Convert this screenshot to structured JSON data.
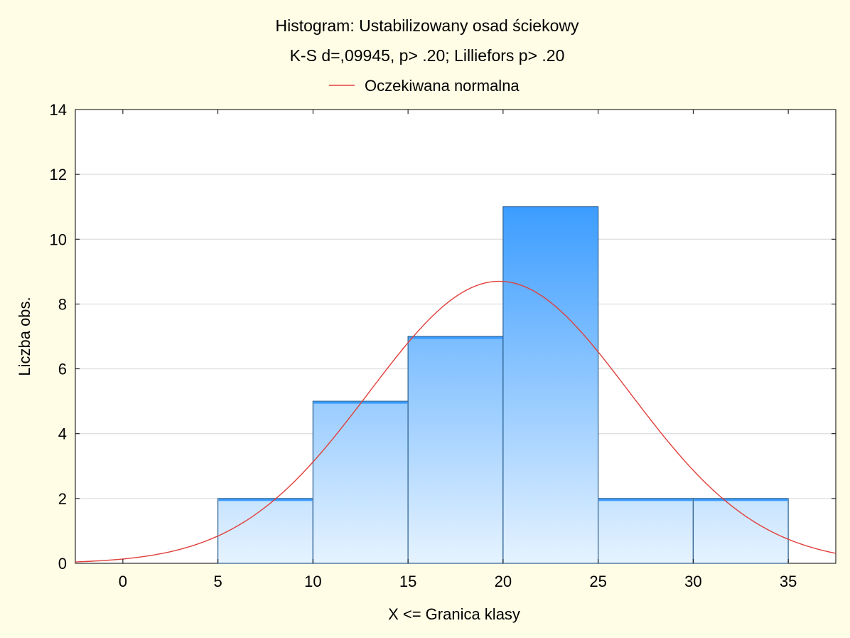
{
  "chart_data": {
    "type": "bar",
    "title": "Histogram: Ustabilizowany osad ściekowy",
    "subtitle": "K-S d=,09945, p> .20; Lilliefors p> .20",
    "legend": [
      {
        "label": "Oczekiwana normalna",
        "color": "#e0403c"
      }
    ],
    "xlabel": "X <= Granica klasy",
    "ylabel": "Liczba obs.",
    "xlim": [
      -2.5,
      37.5
    ],
    "ylim": [
      0,
      14
    ],
    "x_ticks": [
      0,
      5,
      10,
      15,
      20,
      25,
      30,
      35
    ],
    "y_ticks": [
      0,
      2,
      4,
      6,
      8,
      10,
      12,
      14
    ],
    "bins": [
      {
        "from": 5,
        "to": 10,
        "value": 2
      },
      {
        "from": 10,
        "to": 15,
        "value": 5
      },
      {
        "from": 15,
        "to": 20,
        "value": 7
      },
      {
        "from": 20,
        "to": 25,
        "value": 11
      },
      {
        "from": 25,
        "to": 30,
        "value": 2
      },
      {
        "from": 30,
        "to": 35,
        "value": 2
      }
    ],
    "normal_curve": {
      "mean": 19.8,
      "sd": 6.85,
      "peak": 8.7
    },
    "grid": true,
    "colors": {
      "bar_top": "#3a9cff",
      "bar_bottom": "#e6f3ff",
      "bar_stroke": "#2a5f8f",
      "curve": "#e0403c",
      "plot_bg": "#ffffff",
      "page_bg": "#fffde6",
      "grid": "#d6d6d6"
    }
  }
}
